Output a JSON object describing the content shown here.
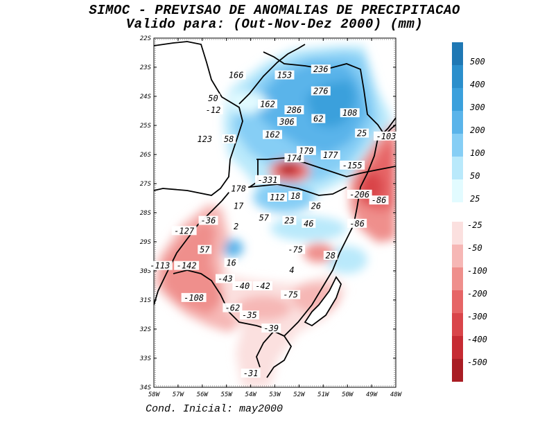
{
  "title": "SIMOC - PREVISAO DE ANOMALIAS DE PRECIPITACAO",
  "subtitle": "Valido para: (Out-Nov-Dez 2000) (mm)",
  "footer": "Cond. Inicial: may2000",
  "axes": {
    "lat_labels": [
      "22S",
      "23S",
      "24S",
      "25S",
      "26S",
      "27S",
      "28S",
      "29S",
      "30S",
      "31S",
      "32S",
      "33S",
      "34S"
    ],
    "lon_labels": [
      "58W",
      "57W",
      "56W",
      "55W",
      "54W",
      "53W",
      "52W",
      "51W",
      "50W",
      "49W",
      "48W"
    ]
  },
  "legend": {
    "positive": [
      {
        "label": "500",
        "color": "#1f78b4"
      },
      {
        "label": "400",
        "color": "#2b8fcc"
      },
      {
        "label": "300",
        "color": "#3ba0dc"
      },
      {
        "label": "200",
        "color": "#5ab4ea"
      },
      {
        "label": "100",
        "color": "#86cef5"
      },
      {
        "label": "50",
        "color": "#b9e9fb"
      },
      {
        "label": "25",
        "color": "#e2fbff"
      }
    ],
    "negative": [
      {
        "label": "-25",
        "color": "#fbe0df"
      },
      {
        "label": "-50",
        "color": "#f6b7b5"
      },
      {
        "label": "-100",
        "color": "#ef8f8c"
      },
      {
        "label": "-200",
        "color": "#e66566"
      },
      {
        "label": "-300",
        "color": "#d9454a"
      },
      {
        "label": "-400",
        "color": "#c62b33"
      },
      {
        "label": "-500",
        "color": "#a91d24"
      }
    ]
  },
  "values": [
    {
      "v": "166",
      "lon": -54.6,
      "lat": -23.3
    },
    {
      "v": "153",
      "lon": -52.6,
      "lat": -23.3
    },
    {
      "v": "236",
      "lon": -51.1,
      "lat": -23.1
    },
    {
      "v": "276",
      "lon": -51.1,
      "lat": -23.85
    },
    {
      "v": "50",
      "lon": -55.55,
      "lat": -24.1
    },
    {
      "v": "-12",
      "lon": -55.55,
      "lat": -24.5
    },
    {
      "v": "162",
      "lon": -53.3,
      "lat": -24.3
    },
    {
      "v": "286",
      "lon": -52.2,
      "lat": -24.5
    },
    {
      "v": "108",
      "lon": -49.9,
      "lat": -24.6
    },
    {
      "v": "306",
      "lon": -52.5,
      "lat": -24.9
    },
    {
      "v": "62",
      "lon": -51.2,
      "lat": -24.8
    },
    {
      "v": "25",
      "lon": -49.4,
      "lat": -25.3
    },
    {
      "v": "-103",
      "lon": -48.4,
      "lat": -25.4
    },
    {
      "v": "123",
      "lon": -55.9,
      "lat": -25.5
    },
    {
      "v": "58",
      "lon": -54.9,
      "lat": -25.5
    },
    {
      "v": "162",
      "lon": -53.1,
      "lat": -25.35
    },
    {
      "v": "179",
      "lon": -51.7,
      "lat": -25.9
    },
    {
      "v": "177",
      "lon": -50.7,
      "lat": -26.05
    },
    {
      "v": "174",
      "lon": -52.2,
      "lat": -26.15
    },
    {
      "v": "-155",
      "lon": -49.8,
      "lat": -26.4
    },
    {
      "v": "-331",
      "lon": -53.3,
      "lat": -26.9
    },
    {
      "v": "178",
      "lon": -54.5,
      "lat": -27.2
    },
    {
      "v": "18",
      "lon": -52.15,
      "lat": -27.45
    },
    {
      "v": "112",
      "lon": -52.9,
      "lat": -27.5
    },
    {
      "v": "-206",
      "lon": -49.5,
      "lat": -27.4
    },
    {
      "v": "-86",
      "lon": -48.7,
      "lat": -27.6
    },
    {
      "v": "17",
      "lon": -54.5,
      "lat": -27.8
    },
    {
      "v": "26",
      "lon": -51.3,
      "lat": -27.8
    },
    {
      "v": "-36",
      "lon": -55.75,
      "lat": -28.3
    },
    {
      "v": "57",
      "lon": -53.45,
      "lat": -28.2
    },
    {
      "v": "23",
      "lon": -52.4,
      "lat": -28.3
    },
    {
      "v": "46",
      "lon": -51.6,
      "lat": -28.4
    },
    {
      "v": "-86",
      "lon": -49.6,
      "lat": -28.4
    },
    {
      "v": "2",
      "lon": -54.6,
      "lat": -28.5
    },
    {
      "v": "-127",
      "lon": -56.75,
      "lat": -28.65
    },
    {
      "v": "57",
      "lon": -55.9,
      "lat": -29.3
    },
    {
      "v": "-75",
      "lon": -52.15,
      "lat": -29.3
    },
    {
      "v": "28",
      "lon": -50.7,
      "lat": -29.5
    },
    {
      "v": "16",
      "lon": -54.8,
      "lat": -29.75
    },
    {
      "v": "-113",
      "lon": -57.75,
      "lat": -29.85
    },
    {
      "v": "-142",
      "lon": -56.65,
      "lat": -29.85
    },
    {
      "v": "4",
      "lon": -52.3,
      "lat": -30.0
    },
    {
      "v": "-43",
      "lon": -55.05,
      "lat": -30.3
    },
    {
      "v": "-40",
      "lon": -54.35,
      "lat": -30.55
    },
    {
      "v": "-42",
      "lon": -53.5,
      "lat": -30.55
    },
    {
      "v": "-75",
      "lon": -52.35,
      "lat": -30.85
    },
    {
      "v": "-108",
      "lon": -56.35,
      "lat": -30.95
    },
    {
      "v": "-62",
      "lon": -54.75,
      "lat": -31.3
    },
    {
      "v": "-35",
      "lon": -54.05,
      "lat": -31.55
    },
    {
      "v": "-39",
      "lon": -53.15,
      "lat": -32.0
    },
    {
      "v": "-31",
      "lon": -54.0,
      "lat": -33.55
    }
  ]
}
